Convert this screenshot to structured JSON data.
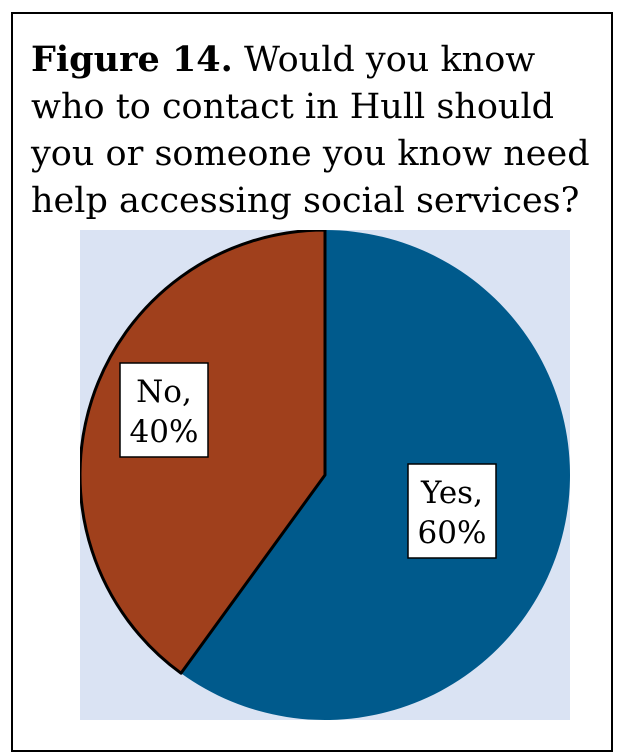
{
  "caption": {
    "label": "Figure 14.",
    "text": "Would you know who to contact in Hull should you or someone you know need help accessing social services?"
  },
  "colors": {
    "plot_background": "#dae3f3",
    "yes": "#005a8c",
    "no": "#a0401c",
    "outline": "#000000"
  },
  "chart_data": {
    "type": "pie",
    "title": "",
    "slices": [
      {
        "category": "Yes",
        "value": 60,
        "color": "#005a8c",
        "label_line1": "Yes,",
        "label_line2": "60%"
      },
      {
        "category": "No",
        "value": 40,
        "color": "#a0401c",
        "label_line1": "No,",
        "label_line2": "40%"
      }
    ],
    "unit": "%",
    "start_angle": "12 o'clock, clockwise",
    "legend": "none"
  }
}
